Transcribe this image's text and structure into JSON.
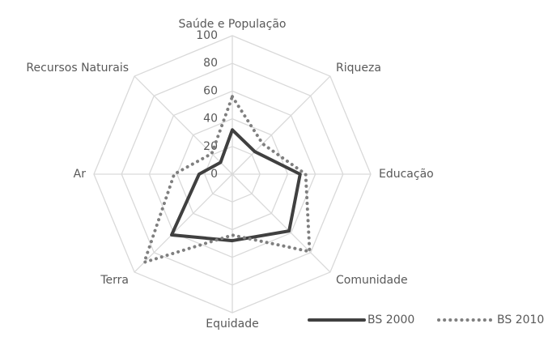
{
  "chart_data": {
    "type": "radar",
    "categories": [
      "Saúde e População",
      "Riqueza",
      "Educação",
      "Comunidade",
      "Equidade",
      "Terra",
      "Ar",
      "Recursos Naturais"
    ],
    "series": [
      {
        "name": "BS 2000",
        "color": "#404040",
        "style": "solid",
        "values": [
          32,
          23,
          49,
          58,
          48,
          62,
          24,
          12
        ]
      },
      {
        "name": "BS 2010",
        "color": "#7f7f7f",
        "style": "dotted",
        "values": [
          56,
          31,
          53,
          79,
          44,
          90,
          42,
          21
        ]
      }
    ],
    "ylim": [
      0,
      100
    ],
    "yticks": [
      0,
      20,
      40,
      60,
      80,
      100
    ],
    "grid": true,
    "legend": "bottom-right"
  }
}
